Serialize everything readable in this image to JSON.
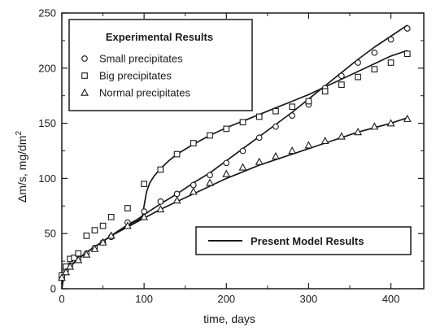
{
  "chart_data": {
    "type": "scatter",
    "title": "",
    "xlabel": "time,  days",
    "ylabel_main": "Δm/s,  mg/dm",
    "ylabel_sup": "2",
    "xlim": [
      0,
      440
    ],
    "ylim": [
      0,
      250
    ],
    "xticks": [
      0,
      100,
      200,
      300,
      400
    ],
    "yticks": [
      0,
      50,
      100,
      150,
      200,
      250
    ],
    "x_minor_step": 50,
    "y_minor_step": 25,
    "grid": false,
    "legend_experimental": {
      "title": "Experimental Results",
      "placement": "top-left"
    },
    "legend_model": {
      "label": "Present Model Results",
      "placement": "bottom-right"
    },
    "series": [
      {
        "name": "Small precipitates",
        "marker": "circle",
        "x": [
          0,
          5,
          10,
          20,
          30,
          40,
          50,
          60,
          80,
          100,
          120,
          140,
          160,
          180,
          200,
          220,
          240,
          260,
          280,
          300,
          320,
          340,
          360,
          380,
          400,
          420
        ],
        "y": [
          10,
          17,
          21,
          27,
          32,
          37,
          42,
          47,
          60,
          70,
          79,
          86,
          94,
          103,
          114,
          125,
          137,
          147,
          157,
          167,
          182,
          193,
          205,
          214,
          226,
          236
        ]
      },
      {
        "name": "Big precipitates",
        "marker": "square",
        "x": [
          0,
          5,
          10,
          15,
          20,
          30,
          40,
          50,
          60,
          80,
          100,
          120,
          140,
          160,
          180,
          200,
          220,
          240,
          260,
          280,
          300,
          320,
          340,
          360,
          380,
          400,
          420
        ],
        "y": [
          12,
          20,
          27,
          28,
          32,
          48,
          53,
          57,
          65,
          73,
          95,
          108,
          122,
          132,
          139,
          145,
          151,
          156,
          161,
          165,
          170,
          179,
          185,
          192,
          199,
          205,
          213
        ]
      },
      {
        "name": "Normal precipitates",
        "marker": "triangle",
        "x": [
          0,
          5,
          10,
          20,
          30,
          40,
          50,
          60,
          80,
          100,
          120,
          140,
          160,
          180,
          200,
          220,
          240,
          260,
          280,
          300,
          320,
          340,
          360,
          380,
          400,
          420
        ],
        "y": [
          10,
          15,
          20,
          26,
          31,
          36,
          42,
          48,
          57,
          65,
          72,
          80,
          88,
          96,
          104,
          110,
          115,
          120,
          125,
          130,
          134,
          138,
          142,
          147,
          150,
          154
        ]
      }
    ],
    "model_curves": [
      {
        "x": [
          0,
          2,
          5,
          10,
          15,
          20,
          30,
          40,
          50,
          60,
          70,
          80,
          90,
          95,
          98,
          100,
          103,
          107,
          112,
          120,
          130,
          140,
          160,
          180,
          200,
          220,
          240,
          260,
          280,
          300,
          320,
          340,
          360,
          380,
          400,
          420
        ],
        "y": [
          0,
          10,
          15,
          20,
          24,
          27,
          33,
          38,
          43,
          48,
          53,
          57,
          61,
          63,
          66,
          75,
          88,
          96,
          102,
          109,
          116,
          122,
          131,
          139,
          146,
          152,
          158,
          164,
          170,
          176,
          183,
          190,
          197,
          204,
          211,
          216
        ]
      },
      {
        "x": [
          0,
          2,
          5,
          10,
          20,
          30,
          40,
          50,
          60,
          70,
          80,
          90,
          100,
          120,
          140,
          160,
          180,
          200,
          220,
          240,
          260,
          280,
          300,
          320,
          340,
          360,
          380,
          400,
          420
        ],
        "y": [
          0,
          10,
          15,
          20,
          27,
          33,
          38,
          43,
          48,
          53,
          58,
          62,
          67,
          77,
          86,
          96,
          105,
          116,
          127,
          138,
          149,
          160,
          172,
          184,
          196,
          208,
          219,
          229,
          239
        ]
      },
      {
        "x": [
          0,
          2,
          5,
          10,
          20,
          30,
          40,
          50,
          60,
          70,
          80,
          90,
          100,
          120,
          140,
          160,
          180,
          200,
          220,
          240,
          260,
          280,
          300,
          320,
          340,
          360,
          380,
          400,
          420
        ],
        "y": [
          0,
          10,
          15,
          20,
          27,
          33,
          38,
          43,
          48,
          52,
          56,
          60,
          64,
          72,
          79,
          86,
          93,
          100,
          106,
          112,
          117,
          122,
          127,
          132,
          137,
          142,
          146,
          150,
          155
        ]
      }
    ]
  }
}
